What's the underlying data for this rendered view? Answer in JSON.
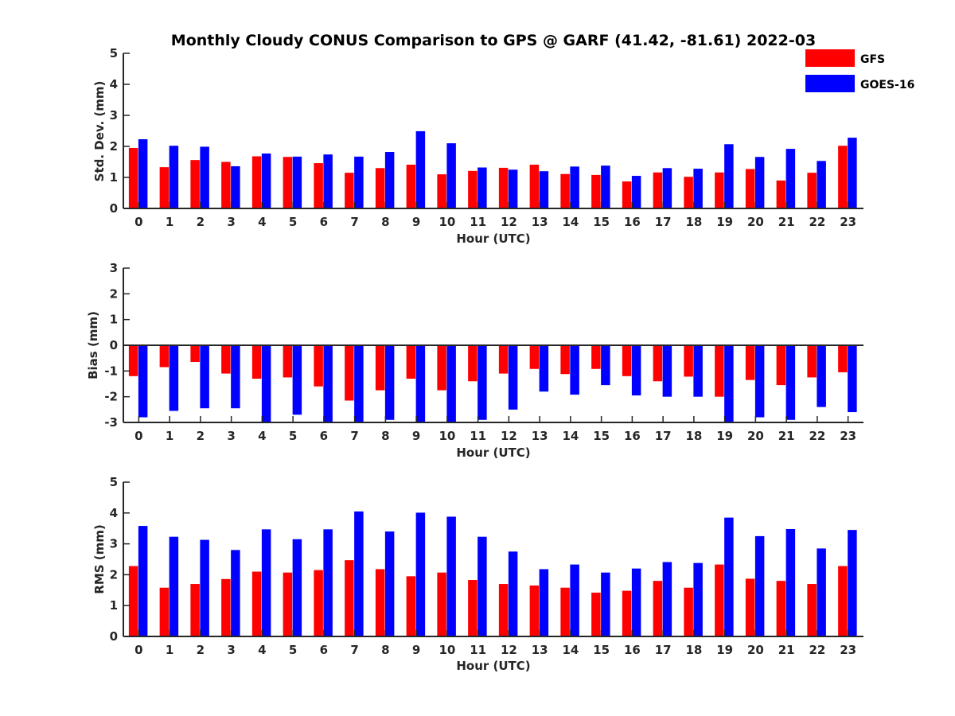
{
  "figure": {
    "title": "Monthly Cloudy CONUS Comparison to GPS @ GARF (41.42, -81.61) 2022-03"
  },
  "legend": {
    "placement": "top-right",
    "entries": [
      {
        "label": "GFS",
        "color": "#ff0000"
      },
      {
        "label": "GOES-16",
        "color": "#0000ff"
      }
    ]
  },
  "chart_data": [
    {
      "type": "bar",
      "ylabel": "Std. Dev. (mm)",
      "xlabel": "Hour (UTC)",
      "ylim": [
        0,
        5
      ],
      "yticks": [
        0,
        1,
        2,
        3,
        4,
        5
      ],
      "categories": [
        "0",
        "1",
        "2",
        "3",
        "4",
        "5",
        "6",
        "7",
        "8",
        "9",
        "10",
        "11",
        "12",
        "13",
        "14",
        "15",
        "16",
        "17",
        "18",
        "19",
        "20",
        "21",
        "22",
        "23"
      ],
      "series": [
        {
          "name": "GFS",
          "color": "#ff0000",
          "values": [
            1.95,
            1.33,
            1.56,
            1.5,
            1.68,
            1.66,
            1.46,
            1.15,
            1.3,
            1.41,
            1.1,
            1.21,
            1.31,
            1.41,
            1.11,
            1.08,
            0.87,
            1.16,
            1.02,
            1.16,
            1.27,
            0.9,
            1.15,
            2.02
          ]
        },
        {
          "name": "GOES-16",
          "color": "#0000ff",
          "values": [
            2.23,
            2.02,
            1.99,
            1.36,
            1.77,
            1.67,
            1.74,
            1.67,
            1.82,
            2.49,
            2.1,
            1.32,
            1.25,
            1.2,
            1.35,
            1.38,
            1.05,
            1.3,
            1.28,
            2.07,
            1.66,
            1.92,
            1.53,
            2.28
          ]
        }
      ]
    },
    {
      "type": "bar",
      "ylabel": "Bias (mm)",
      "xlabel": "Hour (UTC)",
      "ylim": [
        -3,
        3
      ],
      "yticks": [
        -3,
        -2,
        -1,
        0,
        1,
        2,
        3
      ],
      "categories": [
        "0",
        "1",
        "2",
        "3",
        "4",
        "5",
        "6",
        "7",
        "8",
        "9",
        "10",
        "11",
        "12",
        "13",
        "14",
        "15",
        "16",
        "17",
        "18",
        "19",
        "20",
        "21",
        "22",
        "23"
      ],
      "series": [
        {
          "name": "GFS",
          "color": "#ff0000",
          "values": [
            -1.2,
            -0.85,
            -0.65,
            -1.1,
            -1.3,
            -1.25,
            -1.6,
            -2.15,
            -1.75,
            -1.3,
            -1.75,
            -1.4,
            -1.1,
            -0.92,
            -1.12,
            -0.92,
            -1.2,
            -1.4,
            -1.22,
            -2.0,
            -1.35,
            -1.55,
            -1.25,
            -1.05
          ]
        },
        {
          "name": "GOES-16",
          "color": "#0000ff",
          "values": [
            -2.8,
            -2.55,
            -2.45,
            -2.45,
            -3.0,
            -2.7,
            -3.0,
            -3.0,
            -2.9,
            -3.0,
            -3.0,
            -2.9,
            -2.5,
            -1.8,
            -1.92,
            -1.55,
            -1.95,
            -2.0,
            -2.0,
            -3.0,
            -2.8,
            -2.9,
            -2.4,
            -2.6
          ]
        }
      ]
    },
    {
      "type": "bar",
      "ylabel": "RMS (mm)",
      "xlabel": "Hour (UTC)",
      "ylim": [
        0,
        5
      ],
      "yticks": [
        0,
        1,
        2,
        3,
        4,
        5
      ],
      "categories": [
        "0",
        "1",
        "2",
        "3",
        "4",
        "5",
        "6",
        "7",
        "8",
        "9",
        "10",
        "11",
        "12",
        "13",
        "14",
        "15",
        "16",
        "17",
        "18",
        "19",
        "20",
        "21",
        "22",
        "23"
      ],
      "series": [
        {
          "name": "GFS",
          "color": "#ff0000",
          "values": [
            2.28,
            1.58,
            1.7,
            1.86,
            2.1,
            2.07,
            2.15,
            2.47,
            2.18,
            1.95,
            2.07,
            1.83,
            1.7,
            1.65,
            1.58,
            1.42,
            1.48,
            1.8,
            1.58,
            2.33,
            1.87,
            1.8,
            1.7,
            2.28
          ]
        },
        {
          "name": "GOES-16",
          "color": "#0000ff",
          "values": [
            3.58,
            3.23,
            3.13,
            2.8,
            3.47,
            3.15,
            3.47,
            4.05,
            3.4,
            4.01,
            3.88,
            3.23,
            2.75,
            2.18,
            2.33,
            2.07,
            2.2,
            2.41,
            2.38,
            3.85,
            3.25,
            3.48,
            2.85,
            3.45
          ]
        }
      ]
    }
  ]
}
